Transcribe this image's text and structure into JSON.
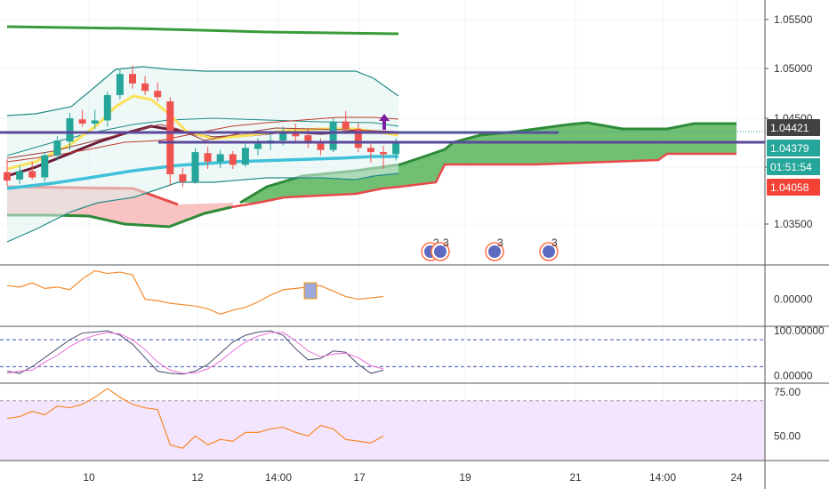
{
  "colors": {
    "up": "#26a69a",
    "down": "#ef5350",
    "ichimoku_fill": "#4caf50",
    "ichimoku_neg_fill": "#f8b4b4",
    "bollinger_fill": "#e0f2f1",
    "rsi_band": "#f3e5fd",
    "purple": "#5b4a9b"
  },
  "price_axis": {
    "ticks": [
      "1.05500",
      "1.05000",
      "1.04500",
      "1.04000",
      "1.03500"
    ]
  },
  "price_tags": [
    {
      "value": "1.04421",
      "color": "#424242"
    },
    {
      "value": "1.04379",
      "color": "#26a69a"
    },
    {
      "value": "01:51:54",
      "color": "#26a69a"
    },
    {
      "value": "1.04058",
      "color": "#f44336"
    }
  ],
  "time_axis": {
    "labels": [
      "10",
      "12",
      "14:00",
      "17",
      "19",
      "21",
      "14:00",
      "24"
    ]
  },
  "event_badges": [
    {
      "label": "2",
      "icon": "calendar-event-icon"
    },
    {
      "label": "3",
      "icon": "calendar-event-icon"
    },
    {
      "label": "3",
      "icon": "calendar-event-icon"
    },
    {
      "label": "3",
      "icon": "calendar-event-icon"
    }
  ],
  "panes": {
    "momentum": {
      "ticks": [
        "0.00000"
      ]
    },
    "stochastic": {
      "ticks": [
        "100.00000",
        "0.00000"
      ]
    },
    "rsi": {
      "ticks": [
        "75.00",
        "50.00"
      ]
    }
  },
  "chart_data": [
    {
      "type": "candlestick",
      "pane": "price",
      "ylim": [
        1.0322,
        1.0572
      ],
      "candles": [
        {
          "o": 1.0409,
          "h": 1.0421,
          "l": 1.0396,
          "c": 1.0401
        },
        {
          "o": 1.0402,
          "h": 1.0415,
          "l": 1.0398,
          "c": 1.041
        },
        {
          "o": 1.041,
          "h": 1.0419,
          "l": 1.0402,
          "c": 1.0404
        },
        {
          "o": 1.0404,
          "h": 1.0428,
          "l": 1.04,
          "c": 1.0425
        },
        {
          "o": 1.0425,
          "h": 1.0443,
          "l": 1.042,
          "c": 1.0439
        },
        {
          "o": 1.0438,
          "h": 1.0465,
          "l": 1.043,
          "c": 1.046
        },
        {
          "o": 1.0459,
          "h": 1.0468,
          "l": 1.0452,
          "c": 1.0455
        },
        {
          "o": 1.0455,
          "h": 1.0468,
          "l": 1.045,
          "c": 1.0458
        },
        {
          "o": 1.0458,
          "h": 1.0485,
          "l": 1.0452,
          "c": 1.0482
        },
        {
          "o": 1.0482,
          "h": 1.0506,
          "l": 1.0478,
          "c": 1.0502
        },
        {
          "o": 1.0502,
          "h": 1.051,
          "l": 1.0488,
          "c": 1.0493
        },
        {
          "o": 1.0493,
          "h": 1.05,
          "l": 1.0482,
          "c": 1.0486
        },
        {
          "o": 1.0486,
          "h": 1.0494,
          "l": 1.0476,
          "c": 1.048
        },
        {
          "o": 1.0476,
          "h": 1.048,
          "l": 1.0396,
          "c": 1.0407
        },
        {
          "o": 1.0407,
          "h": 1.0413,
          "l": 1.0395,
          "c": 1.04
        },
        {
          "o": 1.04,
          "h": 1.0432,
          "l": 1.0398,
          "c": 1.0428
        },
        {
          "o": 1.0427,
          "h": 1.0433,
          "l": 1.0412,
          "c": 1.0419
        },
        {
          "o": 1.0419,
          "h": 1.043,
          "l": 1.0413,
          "c": 1.0426
        },
        {
          "o": 1.0426,
          "h": 1.0429,
          "l": 1.0412,
          "c": 1.0416
        },
        {
          "o": 1.0416,
          "h": 1.0436,
          "l": 1.0414,
          "c": 1.0432
        },
        {
          "o": 1.0431,
          "h": 1.0441,
          "l": 1.0425,
          "c": 1.0436
        },
        {
          "o": 1.0436,
          "h": 1.0448,
          "l": 1.043,
          "c": 1.0439
        },
        {
          "o": 1.0439,
          "h": 1.0452,
          "l": 1.0434,
          "c": 1.0446
        },
        {
          "o": 1.0446,
          "h": 1.0455,
          "l": 1.0438,
          "c": 1.0443
        },
        {
          "o": 1.0444,
          "h": 1.045,
          "l": 1.0432,
          "c": 1.0436
        },
        {
          "o": 1.0436,
          "h": 1.0441,
          "l": 1.0425,
          "c": 1.043
        },
        {
          "o": 1.043,
          "h": 1.046,
          "l": 1.0428,
          "c": 1.0457
        },
        {
          "o": 1.0457,
          "h": 1.0467,
          "l": 1.0445,
          "c": 1.045
        },
        {
          "o": 1.045,
          "h": 1.0456,
          "l": 1.0428,
          "c": 1.0432
        },
        {
          "o": 1.0432,
          "h": 1.0438,
          "l": 1.0418,
          "c": 1.0428
        },
        {
          "o": 1.0428,
          "h": 1.0434,
          "l": 1.0412,
          "c": 1.0426
        },
        {
          "o": 1.0426,
          "h": 1.0441,
          "l": 1.042,
          "c": 1.0437
        }
      ]
    },
    {
      "type": "line",
      "pane": "momentum",
      "ylim": [
        -0.0016,
        0.0022
      ],
      "series": [
        {
          "values": [
            0.001,
            0.0009,
            0.0012,
            0.0008,
            0.0009,
            0.0007,
            0.0015,
            0.0021,
            0.0019,
            0.002,
            0.0018,
            0.0,
            -0.0001,
            -0.0003,
            -0.0004,
            -0.0005,
            -0.0007,
            -0.0011,
            -0.0008,
            -0.0006,
            -0.0002,
            0.0003,
            0.0007,
            0.0008,
            0.0009,
            0.001,
            0.0006,
            0.0002,
            0.0,
            0.0001,
            0.0002
          ]
        }
      ]
    },
    {
      "type": "line",
      "pane": "stochastic",
      "ylim": [
        -15,
        110
      ],
      "series": [
        {
          "values": [
            10,
            5,
            20,
            40,
            60,
            80,
            95,
            97,
            100,
            90,
            70,
            40,
            10,
            5,
            3,
            10,
            25,
            50,
            75,
            90,
            97,
            100,
            90,
            60,
            35,
            38,
            55,
            52,
            25,
            5,
            12
          ]
        },
        {
          "values": [
            5,
            10,
            12,
            30,
            45,
            65,
            80,
            90,
            96,
            93,
            80,
            58,
            30,
            12,
            5,
            6,
            15,
            32,
            55,
            75,
            88,
            96,
            96,
            78,
            55,
            42,
            48,
            50,
            40,
            22,
            15
          ]
        }
      ]
    },
    {
      "type": "line",
      "pane": "rsi",
      "ylim": [
        36,
        80
      ],
      "series": [
        {
          "values": [
            60,
            61,
            64,
            62,
            67,
            66,
            68,
            72,
            77,
            72,
            68,
            66,
            65,
            45,
            43,
            50,
            45,
            48,
            47,
            52,
            52,
            54,
            55,
            52,
            50,
            56,
            54,
            48,
            47,
            46,
            50
          ]
        }
      ]
    }
  ]
}
